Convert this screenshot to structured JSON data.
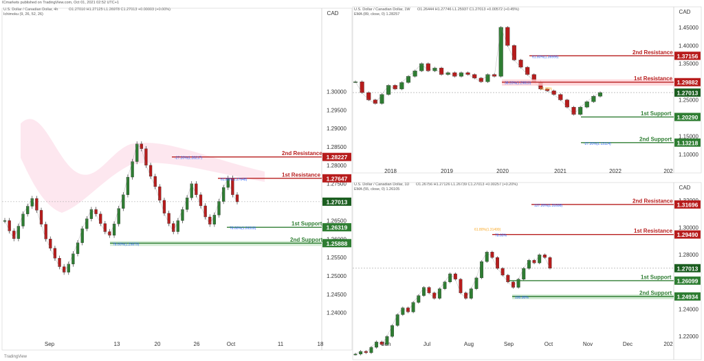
{
  "page": {
    "publisher": "ICmarkets published on TradingView.com, Oct 01, 2021 02:52 UTC+1",
    "brand": "TradingView"
  },
  "chart_data": [
    {
      "type": "candlestick",
      "symbol": "U.S. Dollar / Canadian Dollar, 4h",
      "ohlc": "O1.27010 H1.27125 L1.26978 C1.27013 +0.00003 (+0.00%)",
      "indicator": "Ichimoku (9, 26, 52, 26)",
      "unit": "CAD",
      "ylim": [
        1.2325,
        1.32
      ],
      "y_ticks": [
        1.24,
        1.245,
        1.25,
        1.255,
        1.26,
        1.265,
        1.27,
        1.275,
        1.28,
        1.285,
        1.29,
        1.295,
        1.3
      ],
      "x_ticks": [
        "Sep",
        "13",
        "20",
        "26",
        "Oct",
        "11",
        "18"
      ],
      "current_price": 1.27013,
      "levels": [
        {
          "name": "2nd Resistance",
          "price": 1.28227,
          "kind": "resistance",
          "fib": "-27.20%(1.28217)"
        },
        {
          "name": "1st Resistance",
          "price": 1.27647,
          "kind": "resistance",
          "fib": "61.80%(1.27648)"
        },
        {
          "name": "1st Support",
          "price": 1.26319,
          "kind": "support",
          "fib": "78.60%(1.26318)"
        },
        {
          "name": "2nd Support",
          "price": 1.25888,
          "kind": "support",
          "fib": "78.60%(1.25879)"
        }
      ],
      "price_series": [
        1.265,
        1.2622,
        1.2601,
        1.2635,
        1.2668,
        1.2689,
        1.271,
        1.2678,
        1.264,
        1.26,
        1.2575,
        1.2548,
        1.2525,
        1.251,
        1.2532,
        1.256,
        1.259,
        1.2628,
        1.2655,
        1.268,
        1.2668,
        1.2642,
        1.262,
        1.261,
        1.2641,
        1.2683,
        1.272,
        1.2768,
        1.281,
        1.2858,
        1.2845,
        1.28,
        1.277,
        1.2742,
        1.2705,
        1.267,
        1.2642,
        1.262,
        1.265,
        1.268,
        1.2712,
        1.275,
        1.272,
        1.269,
        1.266,
        1.264,
        1.2665,
        1.2702,
        1.274,
        1.2765,
        1.272,
        1.2701
      ]
    },
    {
      "type": "candlestick",
      "symbol": "U.S. Dollar / Canadian Dollar, 1W",
      "ohlc": "O1.26444 H1.27746 L1.25937 C1.27013 +0.00572 (+0.45%)",
      "indicator": "EMA (89, close, 0) 1.28257",
      "unit": "CAD",
      "ylim": [
        1.075,
        1.48
      ],
      "y_ticks": [
        1.1,
        1.15,
        1.2,
        1.25,
        1.3,
        1.35,
        1.4,
        1.45
      ],
      "x_ticks": [
        "2018",
        "2019",
        "2020",
        "2021",
        "2022",
        "202"
      ],
      "current_price": 1.27013,
      "levels": [
        {
          "name": "2nd Resistance",
          "price": 1.37156,
          "kind": "resistance",
          "fib": "61.80%(1.36995)"
        },
        {
          "name": "1st Resistance",
          "price": 1.29882,
          "kind": "resistance",
          "fib": "38.20%(1.29810)"
        },
        {
          "name": "1st Support",
          "price": 1.2029,
          "kind": "support",
          "fib": ""
        },
        {
          "name": "2nd Support",
          "price": 1.13218,
          "kind": "support",
          "fib": "-27.20%(1.13114)"
        }
      ],
      "extra_labels": [
        "61.80%"
      ],
      "price_series": [
        1.3,
        1.27,
        1.25,
        1.24,
        1.265,
        1.29,
        1.28,
        1.298,
        1.315,
        1.33,
        1.35,
        1.33,
        1.338,
        1.32,
        1.325,
        1.315,
        1.325,
        1.32,
        1.31,
        1.3,
        1.32,
        1.315,
        1.45,
        1.4,
        1.36,
        1.34,
        1.32,
        1.3,
        1.28,
        1.275,
        1.265,
        1.25,
        1.23,
        1.21,
        1.23,
        1.245,
        1.26,
        1.27
      ]
    },
    {
      "type": "candlestick",
      "symbol": "U.S. Dollar / Canadian Dollar, 1D",
      "ohlc": "O1.26756 H1.27126 L1.26739 C1.27013 +0.00257 (+0.20%)",
      "indicator": "EMA (55, close, 0) 1.26105",
      "unit": "CAD",
      "ylim": [
        1.21,
        1.326
      ],
      "y_ticks": [
        1.22,
        1.24,
        1.26,
        1.28,
        1.3,
        1.32
      ],
      "x_ticks": [
        "Jun",
        "Jul",
        "Aug",
        "Sep",
        "Oct",
        "Nov",
        "Dec",
        "202"
      ],
      "current_price": 1.27013,
      "levels": [
        {
          "name": "2nd Resistance",
          "price": 1.31696,
          "kind": "resistance",
          "fib": "127.20%(1.31698)"
        },
        {
          "name": "1st Resistance",
          "price": 1.2949,
          "kind": "resistance",
          "fib": "78.60%"
        },
        {
          "name": "1st Support",
          "price": 1.26099,
          "kind": "support",
          "fib": ""
        },
        {
          "name": "2nd Support",
          "price": 1.24934,
          "kind": "support",
          "fib": "100.00%"
        }
      ],
      "extra_labels": [
        "61.80%(1.31499)"
      ],
      "price_series": [
        1.207,
        1.209,
        1.208,
        1.212,
        1.216,
        1.214,
        1.22,
        1.228,
        1.236,
        1.241,
        1.238,
        1.245,
        1.25,
        1.256,
        1.252,
        1.248,
        1.255,
        1.26,
        1.266,
        1.262,
        1.252,
        1.248,
        1.255,
        1.263,
        1.275,
        1.282,
        1.278,
        1.27,
        1.265,
        1.26,
        1.256,
        1.262,
        1.27,
        1.276,
        1.274,
        1.28,
        1.278,
        1.2701
      ]
    }
  ]
}
